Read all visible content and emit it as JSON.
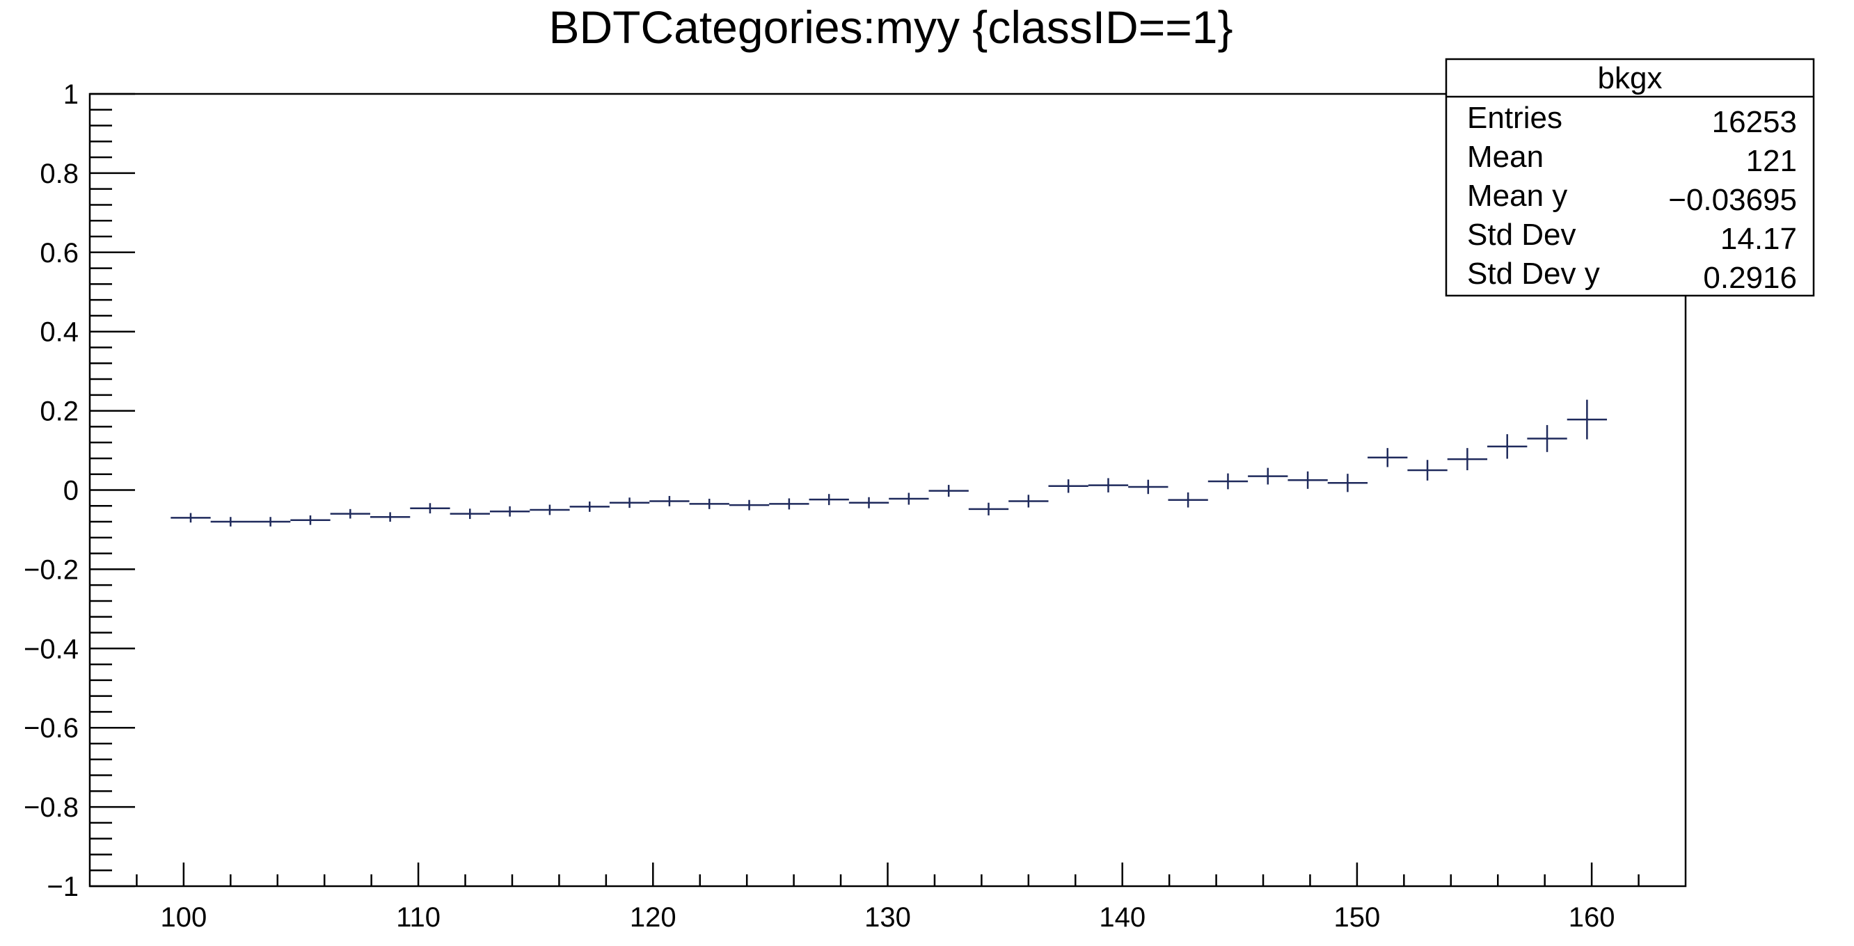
{
  "chart_data": {
    "type": "scatter",
    "title": "BDTCategories:myy {classID==1}",
    "xlabel": "",
    "ylabel": "",
    "xlim": [
      96,
      164
    ],
    "ylim": [
      -1,
      1
    ],
    "x_ticks": [
      {
        "value": 100,
        "label": "100"
      },
      {
        "value": 110,
        "label": "110"
      },
      {
        "value": 120,
        "label": "120"
      },
      {
        "value": 130,
        "label": "130"
      },
      {
        "value": 140,
        "label": "140"
      },
      {
        "value": 150,
        "label": "150"
      },
      {
        "value": 160,
        "label": "160"
      }
    ],
    "y_ticks": [
      {
        "value": 1,
        "label": "1"
      },
      {
        "value": 0.8,
        "label": "0.8"
      },
      {
        "value": 0.6,
        "label": "0.6"
      },
      {
        "value": 0.4,
        "label": "0.4"
      },
      {
        "value": 0.2,
        "label": "0.2"
      },
      {
        "value": 0,
        "label": "0"
      },
      {
        "value": -0.2,
        "label": "−0.2"
      },
      {
        "value": -0.4,
        "label": "−0.4"
      },
      {
        "value": -0.6,
        "label": "−0.6"
      },
      {
        "value": -0.8,
        "label": "−0.8"
      },
      {
        "value": -1,
        "label": "−1"
      }
    ],
    "grid": false,
    "marker_color": "#1f2a5c",
    "bin_width": 1.7,
    "series": [
      {
        "x": [
          100.3,
          102.0,
          103.7,
          105.4,
          107.1,
          108.8,
          110.5,
          112.2,
          113.9,
          115.6,
          117.3,
          119.0,
          120.7,
          122.4,
          124.1,
          125.8,
          127.5,
          129.2,
          130.9,
          132.6,
          134.3,
          136.0,
          137.7,
          139.4,
          141.1,
          142.8,
          144.5,
          146.2,
          147.9,
          149.6,
          151.3,
          153.0,
          154.7,
          156.4,
          158.1,
          159.8
        ],
        "y": [
          -0.07,
          -0.08,
          -0.08,
          -0.076,
          -0.06,
          -0.068,
          -0.046,
          -0.06,
          -0.054,
          -0.05,
          -0.042,
          -0.032,
          -0.028,
          -0.035,
          -0.038,
          -0.035,
          -0.024,
          -0.032,
          -0.022,
          -0.002,
          -0.048,
          -0.028,
          0.01,
          0.012,
          0.008,
          -0.025,
          0.022,
          0.035,
          0.025,
          0.018,
          0.082,
          0.05,
          0.078,
          0.11,
          0.13,
          0.178
        ],
        "yerr": [
          0.012,
          0.012,
          0.012,
          0.012,
          0.012,
          0.012,
          0.013,
          0.013,
          0.013,
          0.013,
          0.013,
          0.013,
          0.013,
          0.013,
          0.013,
          0.014,
          0.014,
          0.014,
          0.015,
          0.015,
          0.016,
          0.016,
          0.017,
          0.018,
          0.018,
          0.019,
          0.02,
          0.021,
          0.022,
          0.023,
          0.024,
          0.026,
          0.028,
          0.031,
          0.034,
          0.05
        ]
      }
    ],
    "stats_box": {
      "title": "bkgx",
      "position": "top-right",
      "rows": [
        {
          "label": "Entries",
          "value": "16253"
        },
        {
          "label": "Mean",
          "value": "121"
        },
        {
          "label": "Mean y",
          "value": "−0.03695"
        },
        {
          "label": "Std Dev",
          "value": "14.17"
        },
        {
          "label": "Std Dev y",
          "value": "0.2916"
        }
      ]
    }
  }
}
